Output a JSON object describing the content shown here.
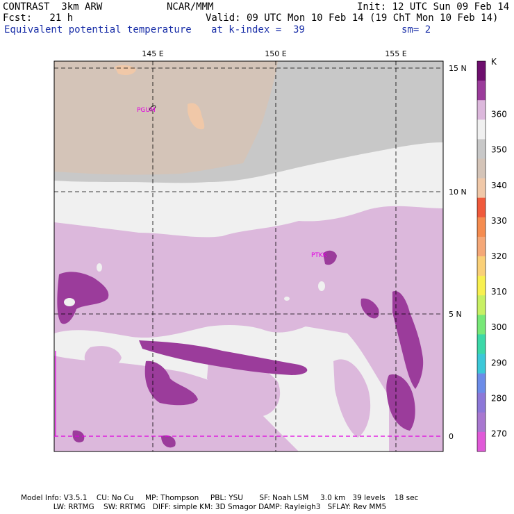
{
  "header": {
    "line1_left": "CONTRAST  3km ARW",
    "line1_mid": "NCAR/MMM",
    "line1_right": "Init: 12 UTC Sun 09 Feb 14",
    "line2_left": "Fcst:   21 h",
    "line2_right": "Valid: 09 UTC Mon 10 Feb 14 (19 ChT Mon 10 Feb 14)",
    "line3_left": "Equivalent potential temperature",
    "line3_mid": "at k-index =  39",
    "line3_right": "sm= 2"
  },
  "map": {
    "lon_labels": [
      "145 E",
      "150 E",
      "155 E"
    ],
    "lat_labels": [
      "15 N",
      "10 N",
      "5 N",
      "0"
    ],
    "stations": [
      {
        "label": "PGUM"
      },
      {
        "label": "PTKK"
      }
    ]
  },
  "colorbar": {
    "unit": "K",
    "labels": [
      "360",
      "350",
      "340",
      "330",
      "320",
      "310",
      "300",
      "290",
      "280",
      "270"
    ],
    "colors": [
      "#6e0f6e",
      "#9b3c9b",
      "#dcb8dc",
      "#f0f0f0",
      "#c8c8c8",
      "#d4c4b8",
      "#f0c8a8",
      "#f05a3c",
      "#f58c50",
      "#f5a878",
      "#fad078",
      "#f8f050",
      "#c8f064",
      "#78e878",
      "#3cd8a8",
      "#3cc8d8",
      "#6c8ce8",
      "#8c78d8",
      "#a878d0",
      "#e05ad8"
    ]
  },
  "footer": {
    "line1": "Model Info: V3.5.1    CU: No Cu     MP: Thompson     PBL: YSU       SF: Noah LSM     3.0 km   39 levels    18 sec",
    "line2": "              LW: RRTMG    SW: RRTMG   DIFF: simple KM: 3D Smagor DAMP: Rayleigh3   SFLAY: Rev MM5"
  }
}
